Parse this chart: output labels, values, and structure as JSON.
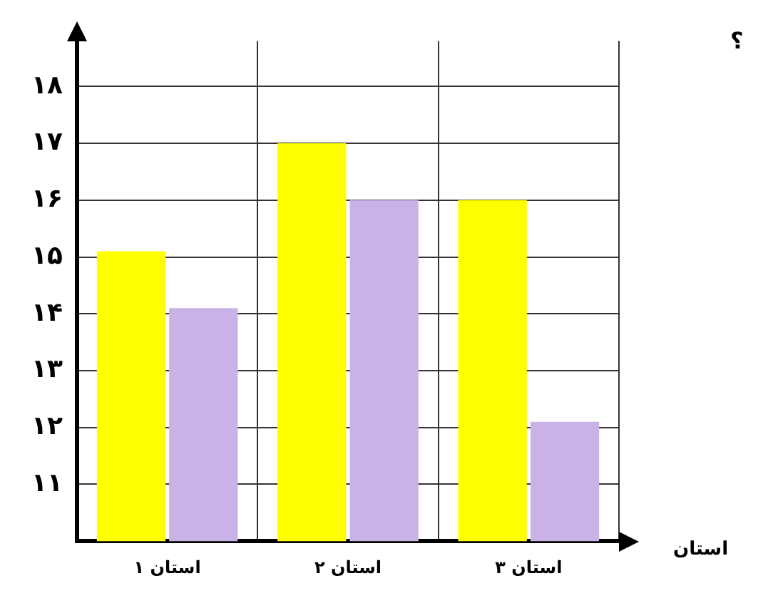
{
  "chart_data": {
    "type": "bar",
    "categories": [
      "استان ۱",
      "استان ۲",
      "استان ۳"
    ],
    "series": [
      {
        "color": "#ffff00",
        "values": [
          15.1,
          17,
          16
        ]
      },
      {
        "color": "#c9b3e6",
        "values": [
          14.1,
          16,
          12.1
        ]
      }
    ],
    "xlabel": "استان",
    "annotations": [
      "؟"
    ],
    "ylim": [
      10,
      18.8
    ],
    "yticks": [
      {
        "value": 10,
        "label": null
      },
      {
        "value": 11,
        "label": "۱۱"
      },
      {
        "value": 12,
        "label": "۱۲"
      },
      {
        "value": 13,
        "label": "۱۳"
      },
      {
        "value": 14,
        "label": "۱۴"
      },
      {
        "value": 15,
        "label": "۱۵"
      },
      {
        "value": 16,
        "label": "۱۶"
      },
      {
        "value": 17,
        "label": "۱۷"
      },
      {
        "value": 18,
        "label": "۱۸"
      }
    ],
    "grid": true
  }
}
